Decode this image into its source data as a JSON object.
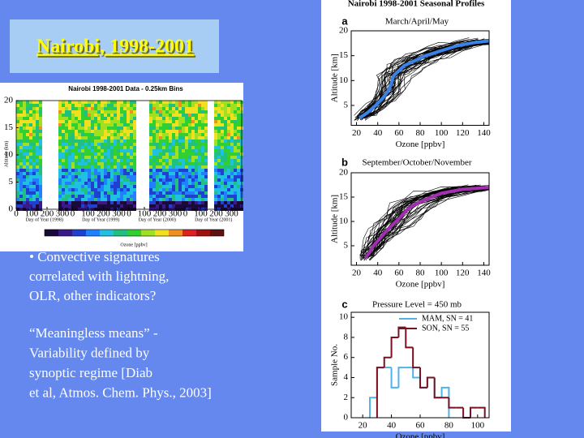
{
  "slide": {
    "title": "Nairobi, 1998-2001",
    "bullets": [
      "• Convective signatures",
      " correlated with lightning,",
      " OLR, other indicators?"
    ],
    "notes": [
      "“Meaningless means” -",
      "Variability defined by",
      "synoptic regime [Diab",
      "et al, Atmos. Chem. Phys., 2003]"
    ]
  },
  "chart_data": [
    {
      "type": "heatmap",
      "title": "Nairobi 1998-2001 Data - 0.25km Bins",
      "y_label": "Altitude (km)",
      "x_labels": [
        "Day of Year (1998)",
        "Day of Year (1999)",
        "Day of Year (2000)",
        "Day of Year (2001)"
      ],
      "colorbar_label": "Ozone [ppbv]",
      "ylim": [
        0,
        20
      ],
      "yticks": [
        0,
        5,
        10,
        15,
        20
      ],
      "xticks": [
        0,
        100,
        200,
        300
      ]
    },
    {
      "type": "line",
      "suptitle": "Nairobi 1998-2001 Seasonal Profiles",
      "letter": "a",
      "title": "March/April/May",
      "x_label": "Ozone [ppbv]",
      "y_label": "Altitude [km]",
      "xlim": [
        15,
        145
      ],
      "ylim": [
        1,
        20
      ],
      "xticks": [
        20,
        40,
        60,
        80,
        100,
        120,
        140
      ],
      "yticks": [
        5,
        10,
        15,
        20
      ],
      "series": [
        {
          "color": "#3b82e6",
          "x": [
            23,
            30,
            38,
            45,
            50,
            53,
            55,
            60,
            65,
            75,
            85,
            100,
            115,
            130,
            145
          ],
          "values": [
            2.5,
            3.5,
            5,
            6.5,
            8,
            9.5,
            11,
            12,
            13,
            14,
            15,
            16,
            17,
            17.6,
            18
          ]
        }
      ]
    },
    {
      "type": "line",
      "letter": "b",
      "title": "September/October/November",
      "x_label": "Ozone [ppbv]",
      "y_label": "Altitude [km]",
      "xlim": [
        15,
        145
      ],
      "ylim": [
        1,
        20
      ],
      "xticks": [
        20,
        40,
        60,
        80,
        100,
        120,
        140
      ],
      "yticks": [
        5,
        10,
        15,
        20
      ],
      "series": [
        {
          "color": "#a030b0",
          "x": [
            28,
            32,
            36,
            42,
            48,
            55,
            62,
            68,
            75,
            85,
            100,
            120,
            145
          ],
          "values": [
            2.5,
            3.5,
            5,
            6.5,
            8,
            9.5,
            11,
            12.5,
            13.5,
            14.5,
            15.8,
            16.6,
            17
          ]
        }
      ]
    },
    {
      "type": "histogram",
      "letter": "c",
      "title": "Pressure Level = 450 mb",
      "x_label": "Ozone [ppbv]",
      "y_label": "Sample No.",
      "xlim": [
        12,
        108
      ],
      "ylim": [
        0,
        10.5
      ],
      "xticks": [
        20,
        40,
        60,
        80,
        100
      ],
      "yticks": [
        0,
        2,
        4,
        6,
        8,
        10
      ],
      "series": [
        {
          "name": "MAM, SN = 41",
          "color": "#4fb3ea",
          "bins": [
            25,
            30,
            35,
            40,
            45,
            50,
            55,
            60,
            65,
            70,
            75,
            80
          ],
          "values": [
            2,
            5,
            5,
            3,
            5,
            5,
            4,
            3,
            4,
            2,
            3
          ]
        },
        {
          "name": "SON, SN = 55",
          "color": "#7a1020",
          "bins": [
            30,
            35,
            40,
            45,
            50,
            55,
            60,
            65,
            70,
            75,
            80,
            85,
            90,
            95,
            100,
            105
          ],
          "values": [
            5,
            6,
            8,
            9,
            7,
            5,
            3,
            4,
            2,
            2,
            1,
            1,
            0,
            1,
            1
          ]
        }
      ]
    }
  ]
}
